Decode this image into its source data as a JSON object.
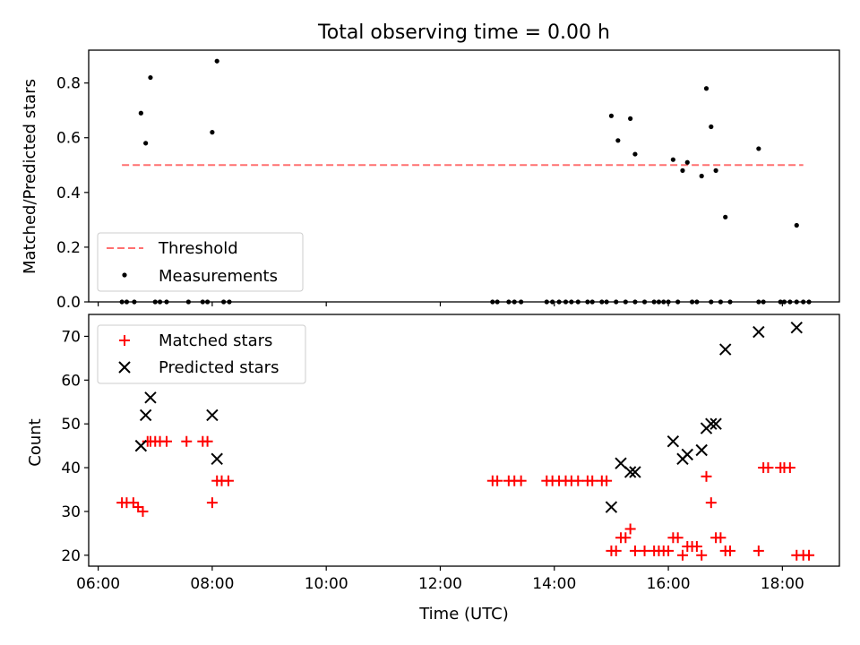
{
  "title": "Total observing time = 0.00 h",
  "chart_data": [
    {
      "type": "scatter",
      "ylabel": "Matched/Predicted stars",
      "ylim": [
        0,
        0.92
      ],
      "yticks": [
        "0.0",
        "0.2",
        "0.4",
        "0.6",
        "0.8"
      ],
      "xlim": [
        "05:50",
        "19:00"
      ],
      "grid": false,
      "legend_position": "lower-left",
      "threshold": {
        "name": "Threshold",
        "value": 0.5,
        "x_range": [
          "06:25",
          "18:22"
        ],
        "color": "#ff7070",
        "style": "dashed"
      },
      "series": [
        {
          "name": "Measurements",
          "color": "#000000",
          "marker": "dot",
          "x": [
            "06:45",
            "06:50",
            "06:55",
            "08:00",
            "08:05",
            "15:00",
            "15:07",
            "15:20",
            "15:25",
            "16:05",
            "16:15",
            "16:20",
            "16:35",
            "16:40",
            "16:45",
            "16:50",
            "17:00",
            "17:35",
            "18:15",
            "06:25",
            "06:30",
            "06:38",
            "07:00",
            "07:05",
            "07:12",
            "07:35",
            "07:50",
            "07:55",
            "08:12",
            "08:18",
            "12:55",
            "13:00",
            "13:12",
            "13:18",
            "13:25",
            "13:52",
            "13:58",
            "14:05",
            "14:12",
            "14:18",
            "14:25",
            "14:35",
            "14:40",
            "14:50",
            "14:55",
            "15:05",
            "15:15",
            "15:25",
            "15:35",
            "15:45",
            "15:50",
            "15:55",
            "16:00",
            "16:10",
            "16:25",
            "16:30",
            "16:45",
            "16:55",
            "17:05",
            "17:35",
            "17:40",
            "17:58",
            "18:02",
            "18:08",
            "18:15",
            "18:22",
            "18:28"
          ],
          "y": [
            0.69,
            0.58,
            0.82,
            0.62,
            0.88,
            0.68,
            0.59,
            0.67,
            0.54,
            0.52,
            0.48,
            0.51,
            0.46,
            0.78,
            0.64,
            0.48,
            0.31,
            0.56,
            0.28,
            0,
            0,
            0,
            0,
            0,
            0,
            0,
            0,
            0,
            0,
            0,
            0,
            0,
            0,
            0,
            0,
            0,
            0,
            0,
            0,
            0,
            0,
            0,
            0,
            0,
            0,
            0,
            0,
            0,
            0,
            0,
            0,
            0,
            0,
            0,
            0,
            0,
            0,
            0,
            0,
            0,
            0,
            0,
            0,
            0,
            0,
            0,
            0
          ]
        }
      ]
    },
    {
      "type": "scatter",
      "ylabel": "Count",
      "xlabel": "Time (UTC)",
      "ylim": [
        17.5,
        75
      ],
      "yticks": [
        "20",
        "30",
        "40",
        "50",
        "60",
        "70"
      ],
      "xlim": [
        "05:50",
        "19:00"
      ],
      "xticks": [
        "06:00",
        "08:00",
        "10:00",
        "12:00",
        "14:00",
        "16:00",
        "18:00"
      ],
      "grid": false,
      "legend_position": "top-left",
      "series": [
        {
          "name": "Matched stars",
          "color": "#ff0000",
          "marker": "plus",
          "x": [
            "06:25",
            "06:30",
            "06:37",
            "06:42",
            "06:47",
            "06:52",
            "06:55",
            "07:00",
            "07:05",
            "07:12",
            "07:33",
            "07:50",
            "07:55",
            "08:00",
            "08:05",
            "08:10",
            "08:17",
            "12:55",
            "13:00",
            "13:12",
            "13:18",
            "13:25",
            "13:52",
            "13:58",
            "14:05",
            "14:12",
            "14:18",
            "14:25",
            "14:35",
            "14:40",
            "14:50",
            "14:55",
            "15:00",
            "15:05",
            "15:10",
            "15:15",
            "15:20",
            "15:25",
            "15:35",
            "15:45",
            "15:50",
            "15:55",
            "16:00",
            "16:05",
            "16:10",
            "16:15",
            "16:20",
            "16:25",
            "16:30",
            "16:35",
            "16:40",
            "16:45",
            "16:50",
            "16:55",
            "17:00",
            "17:05",
            "17:35",
            "17:40",
            "17:45",
            "17:58",
            "18:02",
            "18:08",
            "18:15",
            "18:22",
            "18:28"
          ],
          "y": [
            32,
            32,
            32,
            31,
            30,
            46,
            46,
            46,
            46,
            46,
            46,
            46,
            46,
            32,
            37,
            37,
            37,
            37,
            37,
            37,
            37,
            37,
            37,
            37,
            37,
            37,
            37,
            37,
            37,
            37,
            37,
            37,
            21,
            21,
            24,
            24,
            26,
            21,
            21,
            21,
            21,
            21,
            21,
            24,
            24,
            20,
            22,
            22,
            22,
            20,
            38,
            32,
            24,
            24,
            21,
            21,
            21,
            40,
            40,
            40,
            40,
            40,
            20,
            20,
            20
          ]
        },
        {
          "name": "Predicted stars",
          "color": "#000000",
          "marker": "x",
          "x": [
            "06:45",
            "06:50",
            "06:55",
            "08:00",
            "08:05",
            "15:00",
            "15:10",
            "15:20",
            "15:25",
            "16:05",
            "16:15",
            "16:20",
            "16:35",
            "16:40",
            "16:45",
            "16:50",
            "17:00",
            "17:35",
            "18:15"
          ],
          "y": [
            45,
            52,
            56,
            52,
            42,
            31,
            41,
            39,
            39,
            46,
            42,
            43,
            44,
            49,
            50,
            50,
            67,
            71,
            72
          ]
        }
      ]
    }
  ]
}
